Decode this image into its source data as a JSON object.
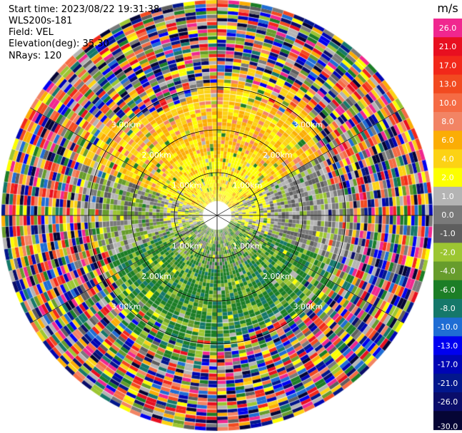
{
  "info": {
    "start_time": "Start time: 2023/08/22 19:31:38",
    "instrument": "WLS200s-181",
    "field": "Field: VEL",
    "elevation": "Elevation(deg): 35.30",
    "nrays": "NRays: 120"
  },
  "range_rings": [
    {
      "label": "1.00km"
    },
    {
      "label": "2.00km"
    },
    {
      "label": "3.00km"
    }
  ],
  "colorbar": {
    "unit": "m/s",
    "levels": [
      {
        "label": "26.0",
        "color": "#f0278f"
      },
      {
        "label": "21.0",
        "color": "#e80f20"
      },
      {
        "label": "17.0",
        "color": "#f2281a"
      },
      {
        "label": "13.0",
        "color": "#f24a20"
      },
      {
        "label": "10.0",
        "color": "#f56b44"
      },
      {
        "label": "8.0",
        "color": "#f28464"
      },
      {
        "label": "6.0",
        "color": "#fbad05"
      },
      {
        "label": "4.0",
        "color": "#fcd214"
      },
      {
        "label": "2.0",
        "color": "#fcff00"
      },
      {
        "label": "1.0",
        "color": "#b4b4b4"
      },
      {
        "label": "0.0",
        "color": "#7a7a7a"
      },
      {
        "label": "-1.0",
        "color": "#5e5e5e"
      },
      {
        "label": "-2.0",
        "color": "#9cc632"
      },
      {
        "label": "-4.0",
        "color": "#679c2c"
      },
      {
        "label": "-6.0",
        "color": "#1c7e26"
      },
      {
        "label": "-8.0",
        "color": "#15786a"
      },
      {
        "label": "-10.0",
        "color": "#1f6dd4"
      },
      {
        "label": "-13.0",
        "color": "#0000f0"
      },
      {
        "label": "-17.0",
        "color": "#0005b4"
      },
      {
        "label": "-21.0",
        "color": "#02178c"
      },
      {
        "label": "-26.0",
        "color": "#0a0d6a"
      },
      {
        "label": "-30.0",
        "color": "#050535"
      }
    ]
  }
}
